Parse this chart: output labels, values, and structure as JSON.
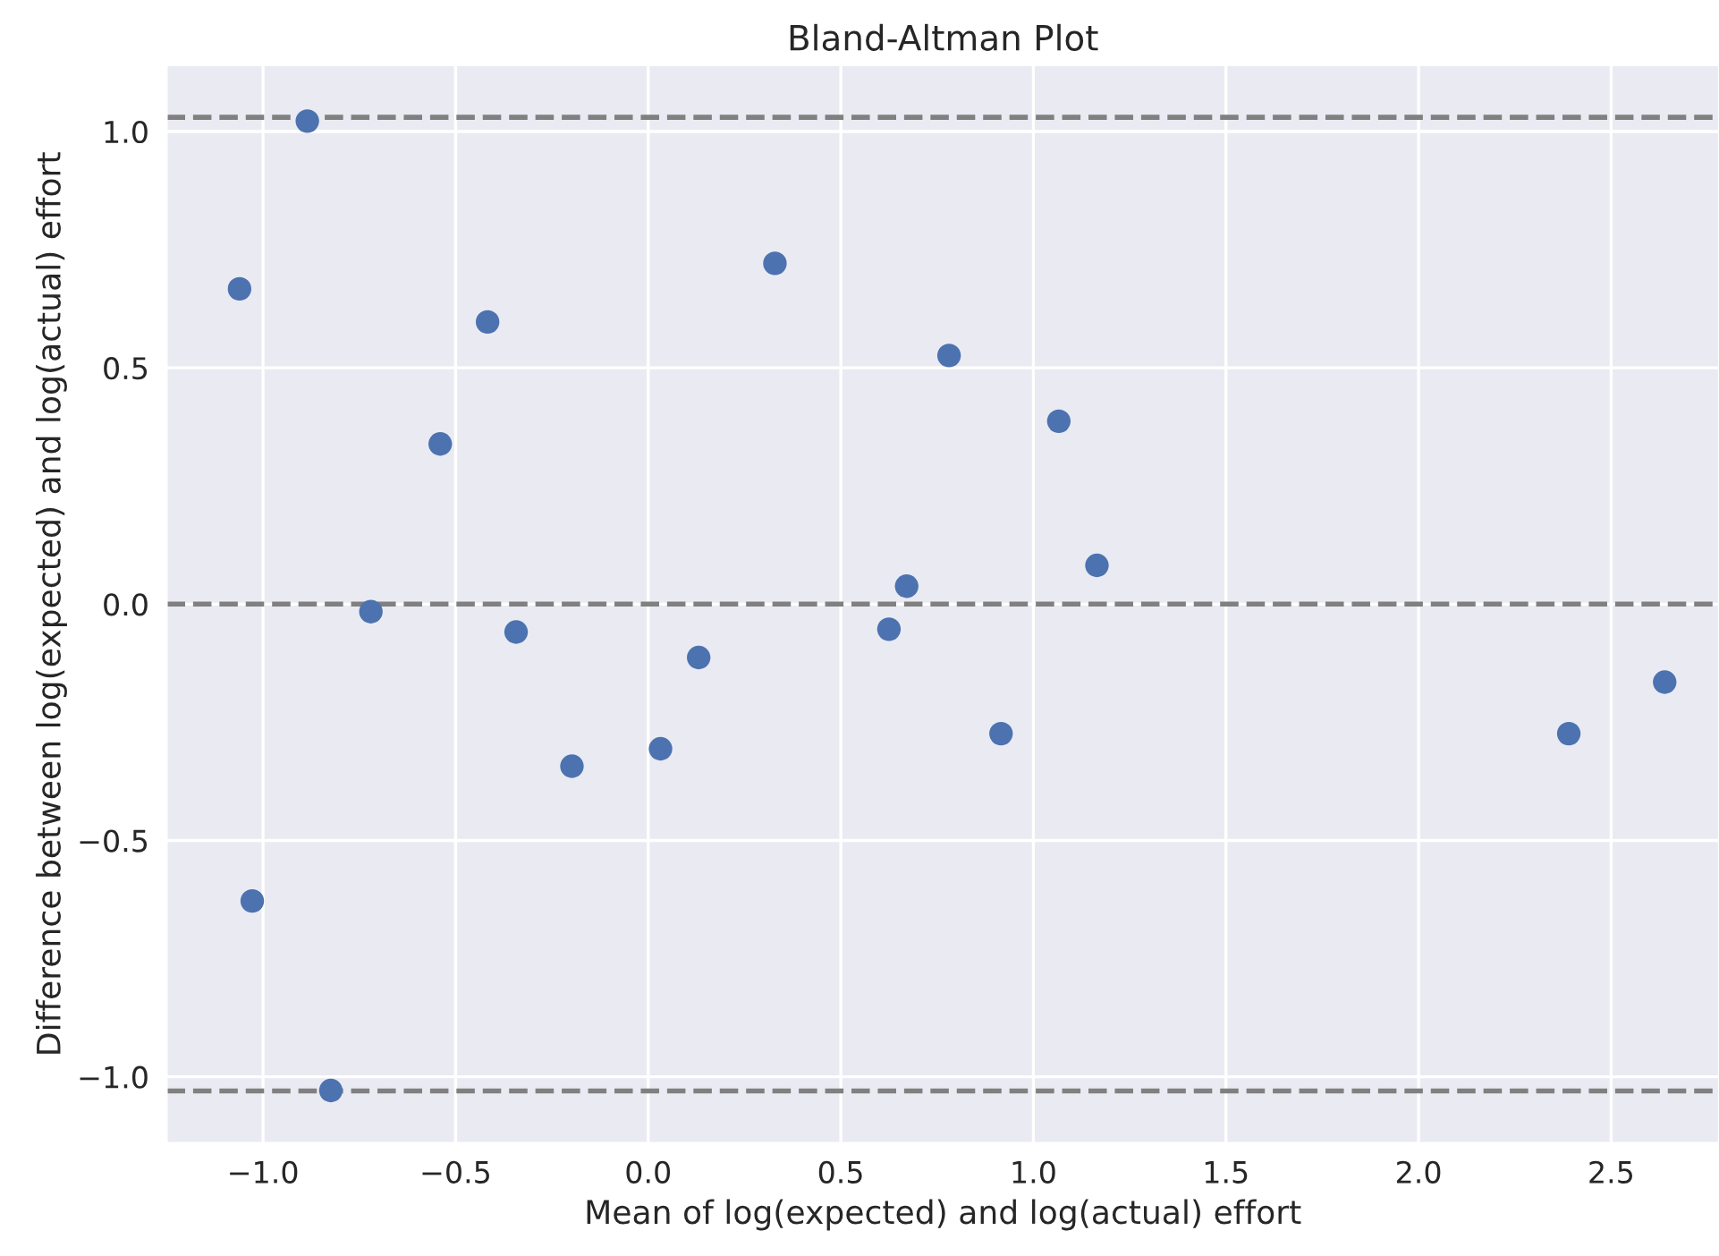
{
  "chart_data": {
    "type": "scatter",
    "title": "Bland-Altman Plot",
    "xlabel": "Mean of log(expected) and log(actual) effort",
    "ylabel": "Difference between log(expected) and log(actual) effort",
    "x": [
      -1.061,
      -0.885,
      -1.028,
      -0.824,
      -0.72,
      -0.54,
      -0.417,
      -0.343,
      -0.198,
      0.032,
      0.131,
      0.329,
      0.625,
      0.671,
      0.781,
      1.066,
      0.916,
      1.165,
      2.39,
      2.639
    ],
    "series": [
      {
        "color": "#4c72b0",
        "values": [
          0.667,
          1.022,
          -0.628,
          -1.029,
          -0.016,
          0.339,
          0.597,
          -0.059,
          -0.343,
          -0.306,
          -0.113,
          0.721,
          -0.053,
          0.038,
          0.526,
          0.387,
          -0.274,
          0.082,
          -0.274,
          -0.165
        ]
      }
    ],
    "marker": "circle",
    "xlim": [
      -1.25,
      2.78
    ],
    "ylim": [
      -1.14,
      1.14
    ],
    "xticks": [
      {
        "value": -1,
        "label": "−1.0"
      },
      -0.5,
      {
        "value": 0,
        "label": "0.0"
      },
      0.5,
      {
        "value": 1,
        "label": "1.0"
      },
      1.5,
      {
        "value": 2,
        "label": "2.0"
      },
      2.5
    ],
    "yticks": [
      {
        "value": -1,
        "label": "−1.0"
      },
      -0.5,
      {
        "value": 0,
        "label": "0.0"
      },
      0.5,
      {
        "value": 1,
        "label": "1.0"
      }
    ],
    "ref_lines": [
      {
        "axis": "y",
        "value": 1.03,
        "color": "#808080",
        "line_style": "dashed"
      },
      {
        "axis": "y",
        "value": 0.0,
        "color": "#808080",
        "line_style": "dashed"
      },
      {
        "axis": "y",
        "value": -1.03,
        "color": "#808080",
        "line_style": "dashed"
      }
    ],
    "grid": true
  }
}
